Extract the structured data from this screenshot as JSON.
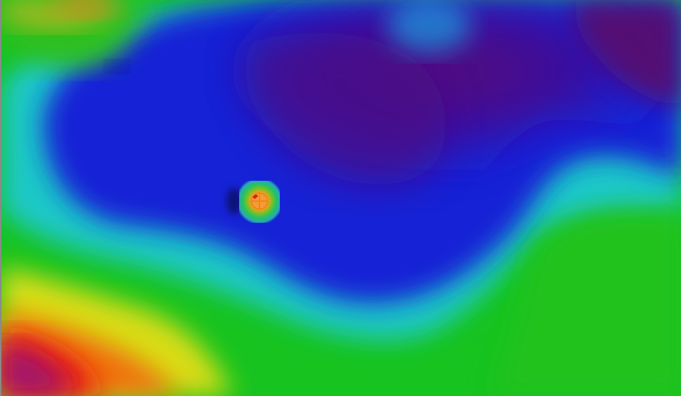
{
  "map": {
    "marker_icon": "crosshair-target-icon",
    "colors": {
      "deep_purple": "#4a0a78",
      "blue": "#1020d8",
      "cyan": "#18c8d0",
      "green": "#18c020",
      "yellow": "#e8e010",
      "orange": "#f06010",
      "red": "#e81010",
      "magenta": "#b0186c",
      "marker": "#f08a00"
    }
  }
}
